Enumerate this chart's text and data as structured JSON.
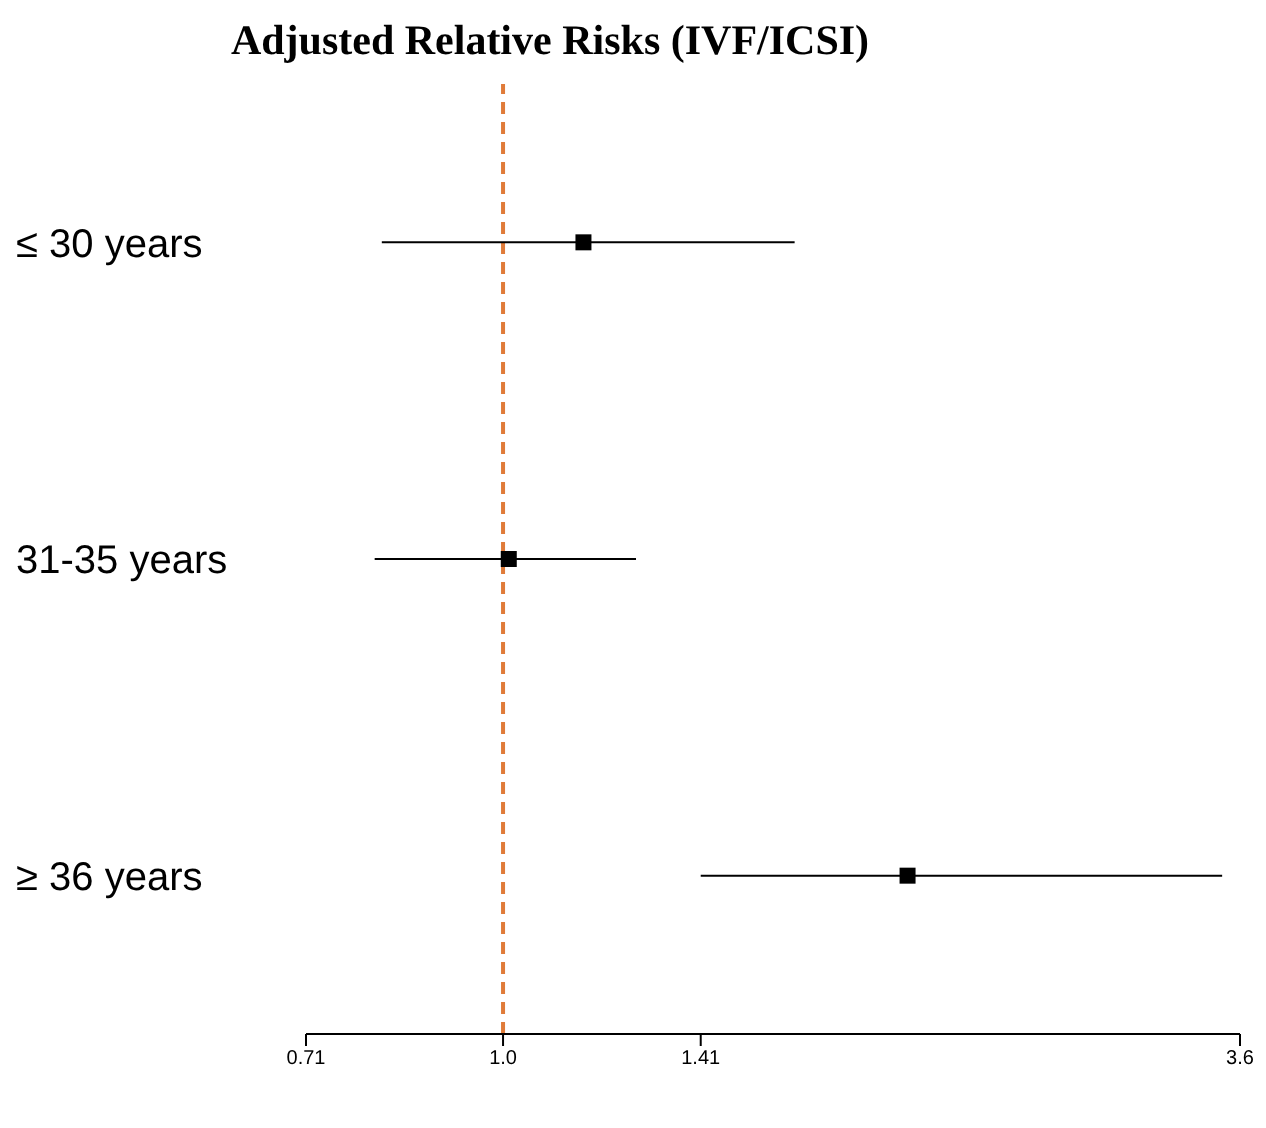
{
  "chart_data": {
    "type": "scatter",
    "orientation": "horizontal",
    "title": "Adjusted Relative Risks (IVF/ICSI)",
    "categories": [
      "≤ 30 years",
      "31-35 years",
      "≥ 36 years"
    ],
    "values": [
      1.15,
      1.01,
      2.02
    ],
    "errors": [
      [
        0.81,
        1.66
      ],
      [
        0.8,
        1.26
      ],
      [
        1.41,
        3.49
      ]
    ],
    "color": "#000000",
    "marker": "square",
    "log": "x",
    "tick_labels": "x",
    "xlim": [
      0.71,
      3.6
    ],
    "xticks": [
      0.71,
      {
        "value": 1,
        "label": "1.0"
      },
      1.41,
      3.6
    ],
    "ref_lines": [
      {
        "axis": "x",
        "value": 1,
        "color": "#e07b39",
        "line_style": "dashed"
      }
    ]
  }
}
